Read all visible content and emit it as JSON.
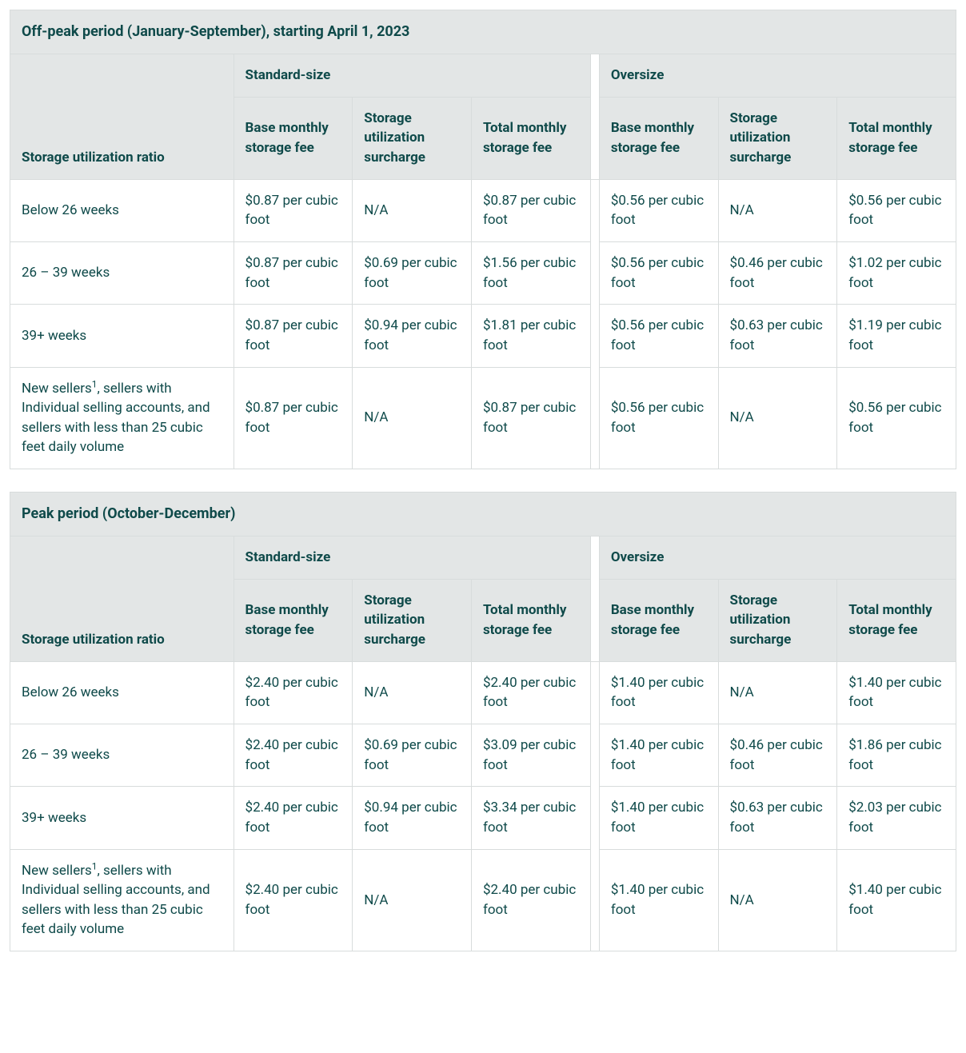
{
  "colors": {
    "header_bg": "#e3e6e6",
    "body_bg": "#ffffff",
    "text": "#0f4a4a",
    "border": "#d8dcdc"
  },
  "column_labels": {
    "ratio": "Storage utilization ratio",
    "group_standard": "Standard-size",
    "group_oversize": "Oversize",
    "base": "Base monthly storage fee",
    "surcharge": "Storage utilization surcharge",
    "total": "Total monthly storage fee"
  },
  "row_labels": {
    "below26": "Below 26 weeks",
    "w26_39": "26 – 39 weeks",
    "w39plus": "39+ weeks",
    "newsellers_pre": "New sellers",
    "newsellers_sup": "1",
    "newsellers_post": ", sellers with Individual selling accounts, and sellers with less than 25 cubic feet daily volume"
  },
  "tables": {
    "offpeak": {
      "title": "Off-peak period (January-September), starting April 1, 2023",
      "rows": {
        "below26": {
          "std": {
            "base": "$0.87 per cubic foot",
            "sur": "N/A",
            "tot": "$0.87 per cubic foot"
          },
          "ovr": {
            "base": "$0.56 per cubic foot",
            "sur": "N/A",
            "tot": "$0.56 per cubic foot"
          }
        },
        "w26_39": {
          "std": {
            "base": "$0.87 per cubic foot",
            "sur": "$0.69 per cubic foot",
            "tot": "$1.56 per cubic foot"
          },
          "ovr": {
            "base": "$0.56 per cubic foot",
            "sur": "$0.46 per cubic foot",
            "tot": "$1.02 per cubic foot"
          }
        },
        "w39plus": {
          "std": {
            "base": "$0.87 per cubic foot",
            "sur": "$0.94 per cubic foot",
            "tot": "$1.81 per cubic foot"
          },
          "ovr": {
            "base": "$0.56 per cubic foot",
            "sur": "$0.63 per cubic foot",
            "tot": "$1.19 per cubic foot"
          }
        },
        "newsellers": {
          "std": {
            "base": "$0.87 per cubic foot",
            "sur": "N/A",
            "tot": "$0.87 per cubic foot"
          },
          "ovr": {
            "base": "$0.56 per cubic foot",
            "sur": "N/A",
            "tot": "$0.56 per cubic foot"
          }
        }
      }
    },
    "peak": {
      "title": "Peak period (October-December)",
      "rows": {
        "below26": {
          "std": {
            "base": "$2.40 per cubic foot",
            "sur": "N/A",
            "tot": "$2.40 per cubic foot"
          },
          "ovr": {
            "base": "$1.40 per cubic foot",
            "sur": "N/A",
            "tot": "$1.40 per cubic foot"
          }
        },
        "w26_39": {
          "std": {
            "base": "$2.40 per cubic foot",
            "sur": "$0.69 per cubic foot",
            "tot": "$3.09 per cubic foot"
          },
          "ovr": {
            "base": "$1.40 per cubic foot",
            "sur": "$0.46 per cubic foot",
            "tot": "$1.86 per cubic foot"
          }
        },
        "w39plus": {
          "std": {
            "base": "$2.40 per cubic foot",
            "sur": "$0.94 per cubic foot",
            "tot": "$3.34 per cubic foot"
          },
          "ovr": {
            "base": "$1.40 per cubic foot",
            "sur": "$0.63 per cubic foot",
            "tot": "$2.03 per cubic foot"
          }
        },
        "newsellers": {
          "std": {
            "base": "$2.40 per cubic foot",
            "sur": "N/A",
            "tot": "$2.40 per cubic foot"
          },
          "ovr": {
            "base": "$1.40 per cubic foot",
            "sur": "N/A",
            "tot": "$1.40 per cubic foot"
          }
        }
      }
    }
  }
}
